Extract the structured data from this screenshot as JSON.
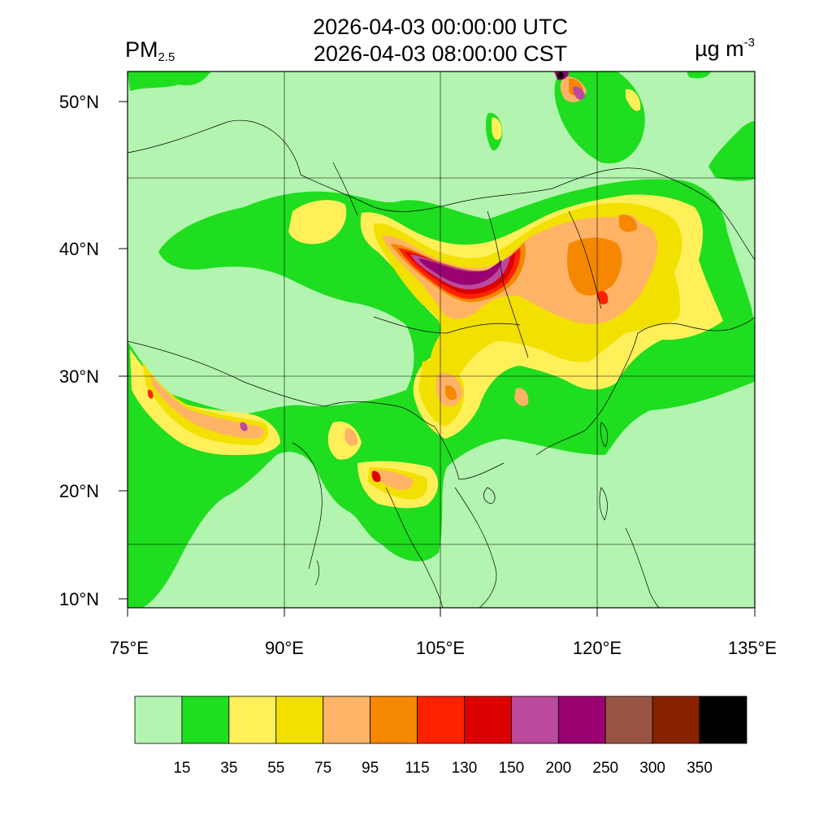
{
  "header": {
    "time_utc": "2026-04-03 00:00:00 UTC",
    "time_cst": "2026-04-03 08:00:00 CST",
    "variable_main": "PM",
    "variable_sub": "2.5",
    "units_main": "µg m",
    "units_sup": "-3"
  },
  "axes": {
    "lat_labels": [
      "50°N",
      "40°N",
      "30°N",
      "20°N",
      "10°N"
    ],
    "lon_labels": [
      "75°E",
      "90°E",
      "105°E",
      "120°E",
      "135°E"
    ]
  },
  "colorbar": {
    "levels": [
      "15",
      "35",
      "55",
      "75",
      "95",
      "115",
      "130",
      "150",
      "200",
      "250",
      "300",
      "350"
    ],
    "colors": [
      "#b3f5b0",
      "#1fdd1f",
      "#fff05a",
      "#f2e000",
      "#ffb366",
      "#f58800",
      "#ff2200",
      "#dd0000",
      "#bb4a9c",
      "#990070",
      "#995544",
      "#882200",
      "#000000"
    ]
  }
}
